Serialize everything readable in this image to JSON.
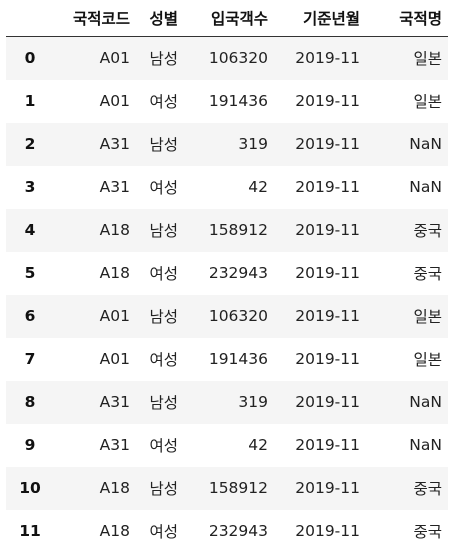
{
  "table": {
    "columns": [
      "",
      "국적코드",
      "성별",
      "입국객수",
      "기준년월",
      "국적명"
    ],
    "rows": [
      [
        "0",
        "A01",
        "남성",
        "106320",
        "2019-11",
        "일본"
      ],
      [
        "1",
        "A01",
        "여성",
        "191436",
        "2019-11",
        "일본"
      ],
      [
        "2",
        "A31",
        "남성",
        "319",
        "2019-11",
        "NaN"
      ],
      [
        "3",
        "A31",
        "여성",
        "42",
        "2019-11",
        "NaN"
      ],
      [
        "4",
        "A18",
        "남성",
        "158912",
        "2019-11",
        "중국"
      ],
      [
        "5",
        "A18",
        "여성",
        "232943",
        "2019-11",
        "중국"
      ],
      [
        "6",
        "A01",
        "남성",
        "106320",
        "2019-11",
        "일본"
      ],
      [
        "7",
        "A01",
        "여성",
        "191436",
        "2019-11",
        "일본"
      ],
      [
        "8",
        "A31",
        "남성",
        "319",
        "2019-11",
        "NaN"
      ],
      [
        "9",
        "A31",
        "여성",
        "42",
        "2019-11",
        "NaN"
      ],
      [
        "10",
        "A18",
        "남성",
        "158912",
        "2019-11",
        "중국"
      ],
      [
        "11",
        "A18",
        "여성",
        "232943",
        "2019-11",
        "중국"
      ]
    ]
  },
  "colors": {
    "stripe": "#f5f5f5",
    "background": "#ffffff",
    "header_rule": "#333333",
    "text": "#222222"
  }
}
